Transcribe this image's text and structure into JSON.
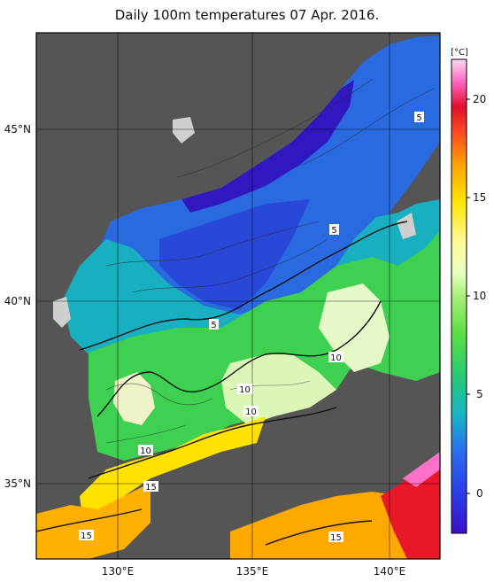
{
  "title": "Daily 100m temperatures 07 Apr. 2016.",
  "map": {
    "lat_labels": [
      "45°N",
      "40°N",
      "35°N"
    ],
    "lon_labels": [
      "130°E",
      "135°E",
      "140°E"
    ],
    "contour_labels": [
      "5",
      "5",
      "5",
      "10",
      "10",
      "10",
      "10",
      "15",
      "15",
      "15"
    ]
  },
  "colorbar": {
    "unit": "[°C]",
    "ticks": [
      "20",
      "15",
      "10",
      "5",
      "0"
    ],
    "range": [
      -2,
      22
    ]
  },
  "colors": {
    "land": "#555555",
    "ice_or_nodata": "#cfcfcf",
    "scale": [
      "#3c10c8",
      "#2a5cf0",
      "#1ea8c8",
      "#2ec84a",
      "#9cf060",
      "#f0ffc8",
      "#ffef40",
      "#ffb000",
      "#ff5a1e",
      "#e0142a",
      "#ff6ec8",
      "#ffd6f0"
    ]
  }
}
